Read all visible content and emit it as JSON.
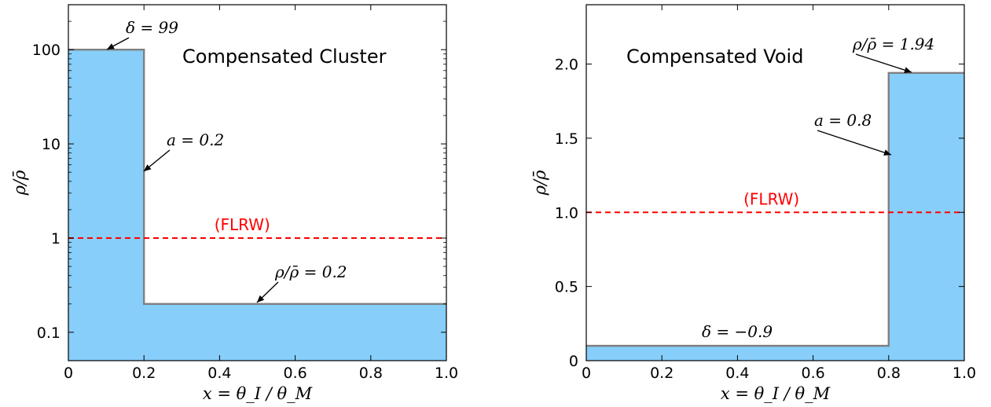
{
  "chart_data": [
    {
      "type": "area",
      "title": "Compensated Cluster",
      "xlabel": "x = θ_I / θ_M",
      "ylabel": "ρ/ρ̄",
      "xlim": [
        0,
        1.0
      ],
      "ylim": [
        0.05,
        300
      ],
      "yscale": "log",
      "xticks": [
        0,
        0.2,
        0.4,
        0.6,
        0.8,
        1.0
      ],
      "xticklabels": [
        "0",
        "0.2",
        "0.4",
        "0.6",
        "0.8",
        "1.0"
      ],
      "yticks": [
        0.1,
        1,
        10,
        100
      ],
      "yticklabels": [
        "0.1",
        "1",
        "10",
        "100"
      ],
      "grid": false,
      "series": [
        {
          "x": [
            0,
            0.2,
            0.2,
            1.0
          ],
          "y": [
            100,
            100,
            0.2,
            0.2
          ],
          "color": "#87CEFA",
          "edgecolor": "#808080"
        }
      ],
      "reference_line": {
        "y": 1,
        "label": "(FLRW)",
        "label_x": 0.46,
        "color": "#ff0000"
      },
      "annotations": [
        {
          "text": "δ = 99",
          "x": 0.1,
          "y": 100
        },
        {
          "text": "a = 0.2",
          "x": 0.2,
          "y": 5
        },
        {
          "text": "ρ/ρ̄ = 0.2",
          "x": 0.5,
          "y": 0.2
        }
      ]
    },
    {
      "type": "area",
      "title": "Compensated Void",
      "xlabel": "x = θ_I / θ_M",
      "ylabel": "ρ/ρ̄",
      "xlim": [
        0,
        1.0
      ],
      "ylim": [
        0,
        2.4
      ],
      "yscale": "linear",
      "xticks": [
        0,
        0.2,
        0.4,
        0.6,
        0.8,
        1.0
      ],
      "xticklabels": [
        "0",
        "0.2",
        "0.4",
        "0.6",
        "0.8",
        "1.0"
      ],
      "yticks": [
        0,
        0.5,
        1.0,
        1.5,
        2.0
      ],
      "yticklabels": [
        "0",
        "0.5",
        "1.0",
        "1.5",
        "2.0"
      ],
      "grid": false,
      "series": [
        {
          "x": [
            0,
            0.8,
            0.8,
            1.0
          ],
          "y": [
            0.1,
            0.1,
            1.94,
            1.94
          ],
          "color": "#87CEFA",
          "edgecolor": "#808080"
        }
      ],
      "reference_line": {
        "y": 1.0,
        "label": "(FLRW)",
        "label_x": 0.49,
        "color": "#ff0000"
      },
      "annotations": [
        {
          "text": "a = 0.8",
          "x": 0.8,
          "y": 1.4
        },
        {
          "text": "ρ/ρ̄ = 1.94",
          "x": 0.85,
          "y": 1.94
        },
        {
          "text": "δ = −0.9",
          "x": 0.4,
          "y": 0.1
        }
      ]
    }
  ]
}
